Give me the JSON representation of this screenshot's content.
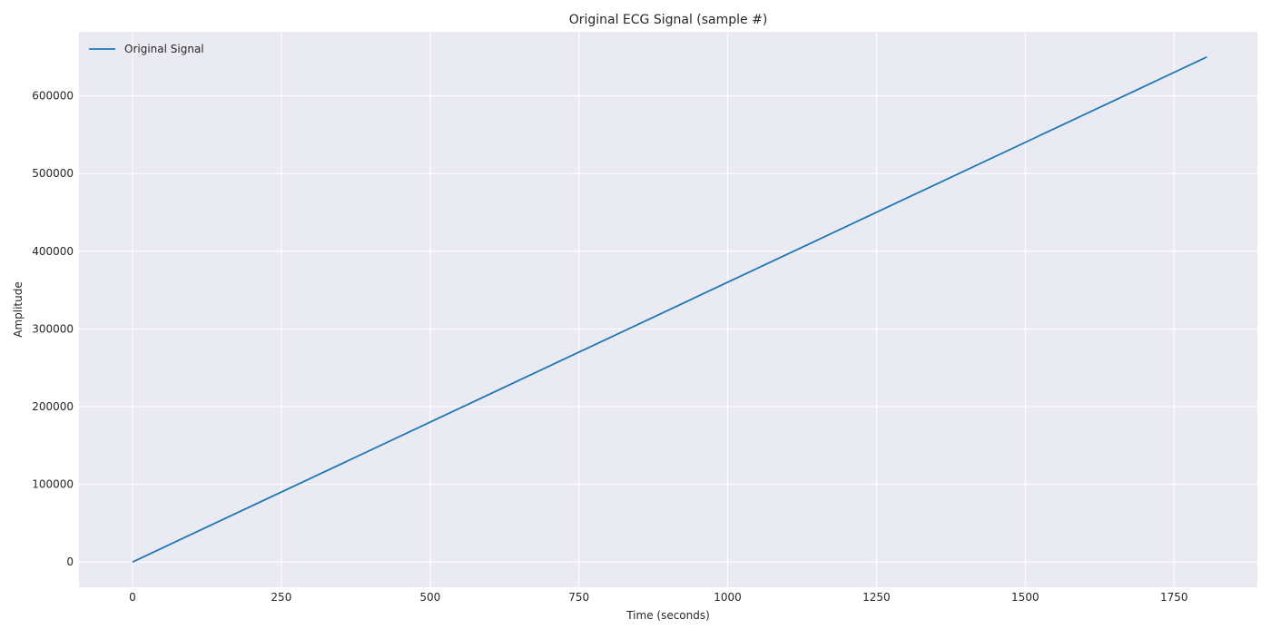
{
  "chart_data": {
    "type": "line",
    "title": "Original ECG Signal (sample #)",
    "xlabel": "Time (seconds)",
    "ylabel": "Amplitude",
    "xlim": [
      -90,
      1890
    ],
    "ylim": [
      -32500,
      682500
    ],
    "xticks": [
      0,
      250,
      500,
      750,
      1000,
      1250,
      1500,
      1750
    ],
    "yticks": [
      0,
      100000,
      200000,
      300000,
      400000,
      500000,
      600000
    ],
    "grid": true,
    "legend_position": "top-left",
    "colors": {
      "plot_background": "#eaeaf2",
      "grid": "#ffffff",
      "line": "#1f77b4"
    },
    "series": [
      {
        "name": "Original Signal",
        "x": [
          0,
          1805
        ],
        "y": [
          0,
          650000
        ]
      }
    ]
  }
}
